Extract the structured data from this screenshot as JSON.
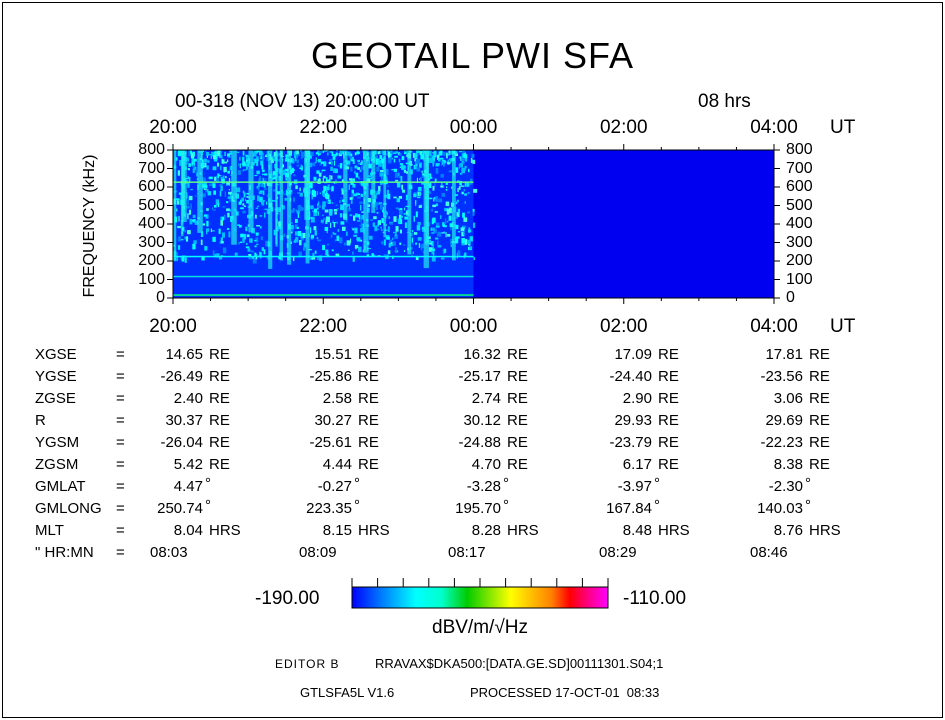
{
  "title": "GEOTAIL PWI SFA",
  "subtitle": {
    "date": "00-318 (NOV 13) 20:00:00 UT",
    "duration": "08 hrs"
  },
  "chart_data": {
    "type": "heatmap",
    "title": "GEOTAIL PWI SFA",
    "ylabel": "FREQUENCY (kHz)",
    "xlabel": "UT",
    "x_ticks": [
      "20:00",
      "22:00",
      "00:00",
      "02:00",
      "04:00"
    ],
    "x_unit": "UT",
    "y_ticks": [
      "0",
      "100",
      "200",
      "300",
      "400",
      "500",
      "600",
      "700",
      "800"
    ],
    "ylim": [
      0,
      800
    ],
    "data_coverage": [
      "20:00",
      "00:00"
    ],
    "colorbar": {
      "min": "-190.00",
      "max": "-110.00",
      "unit": "dBV/m/√Hz",
      "colors": [
        "#0000ff",
        "#00ffff",
        "#00cc00",
        "#ffff00",
        "#ff0000",
        "#ff00ff"
      ]
    },
    "background_color": "#0000f0"
  },
  "table": {
    "rows": [
      {
        "label": "XGSE",
        "eq": "=",
        "values": [
          "14.65",
          "15.51",
          "16.32",
          "17.09",
          "17.81"
        ],
        "unit": "RE"
      },
      {
        "label": "YGSE",
        "eq": "=",
        "values": [
          "-26.49",
          "-25.86",
          "-25.17",
          "-24.40",
          "-23.56"
        ],
        "unit": "RE"
      },
      {
        "label": "ZGSE",
        "eq": "=",
        "values": [
          "2.40",
          "2.58",
          "2.74",
          "2.90",
          "3.06"
        ],
        "unit": "RE"
      },
      {
        "label": "R",
        "eq": "=",
        "values": [
          "30.37",
          "30.27",
          "30.12",
          "29.93",
          "29.69"
        ],
        "unit": "RE"
      },
      {
        "label": "YGSM",
        "eq": "=",
        "values": [
          "-26.04",
          "-25.61",
          "-24.88",
          "-23.79",
          "-22.23"
        ],
        "unit": "RE"
      },
      {
        "label": "ZGSM",
        "eq": "=",
        "values": [
          "5.42",
          "4.44",
          "4.70",
          "6.17",
          "8.38"
        ],
        "unit": "RE"
      },
      {
        "label": "GMLAT",
        "eq": "=",
        "values": [
          "4.47",
          "-0.27",
          "-3.28",
          "-3.97",
          "-2.30"
        ],
        "unit": "°"
      },
      {
        "label": "GMLONG",
        "eq": "=",
        "values": [
          "250.74",
          "223.35",
          "195.70",
          "167.84",
          "140.03"
        ],
        "unit": "°"
      },
      {
        "label": "MLT",
        "eq": "=",
        "values": [
          "8.04",
          "8.15",
          "8.28",
          "8.48",
          "8.76"
        ],
        "unit": "HRS"
      }
    ],
    "time_row": {
      "label": "\" HR:MN",
      "eq": "=",
      "values": [
        "08:03",
        "08:09",
        "08:17",
        "08:29",
        "08:46"
      ]
    }
  },
  "footer": {
    "editor": "EDITOR B",
    "file": "RRAVAX$DKA500:[DATA.GE.SD]00111301.S04;1",
    "program": "GTLSFA5L V1.6",
    "processed": "PROCESSED 17-OCT-01  08:33"
  }
}
